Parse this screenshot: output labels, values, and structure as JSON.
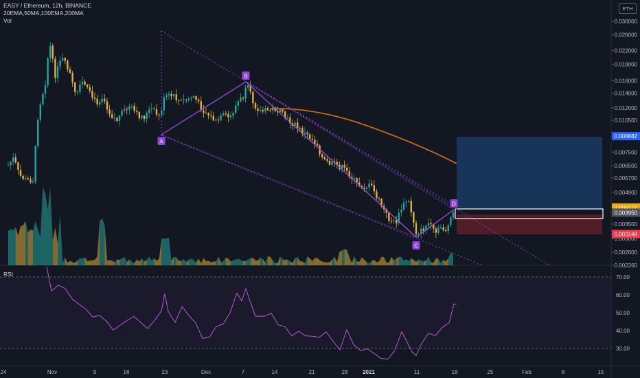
{
  "header": {
    "title": "EASY / Ethereum, 12h, BINANCE",
    "indicators": "20EMA,50MA,100EMA,200MA",
    "volume": "Vol",
    "currency": "ETH"
  },
  "rsi": {
    "label": "RSI"
  },
  "colors": {
    "background": "#131722",
    "up": "#26a69a",
    "down": "#e0b040",
    "pattern": "#8e44d6",
    "ma": "#c46a12",
    "rsi": "#b65bd1",
    "target_zone": "#1a3a63",
    "stop_zone": "#5a1f27"
  },
  "chart_data": [
    {
      "type": "candlestick",
      "price_axis": [
        "0.030000",
        "0.026000",
        "0.022000",
        "0.019000",
        "0.016000",
        "0.014000",
        "0.012000",
        "0.010500",
        "0.008882",
        "0.007500",
        "0.006500",
        "0.005700",
        "0.004900",
        "0.004171",
        "0.003950",
        "0.003500",
        "0.003148",
        "0.003000",
        "0.002600",
        "0.002260"
      ],
      "price_badges": [
        {
          "value": "0.008882",
          "color": "#2962ff"
        },
        {
          "value": "0.004171",
          "color": "#f0a50a"
        },
        {
          "value": "0.003950",
          "color": "#50535e"
        },
        {
          "value": "0.003148",
          "color": "#f23645"
        }
      ],
      "time_axis": [
        "24",
        "Nov",
        "9",
        "16",
        "23",
        "Dec",
        "7",
        "14",
        "21",
        "28",
        "2021",
        "11",
        "18",
        "25",
        "Feb",
        "8",
        "15"
      ],
      "harmonic_points": [
        {
          "label": "A",
          "date": "2020-11-23",
          "price": 0.0092
        },
        {
          "label": "B",
          "date": "2020-12-09",
          "price": 0.016
        },
        {
          "label": "C",
          "date": "2021-01-11",
          "price": 0.003
        },
        {
          "label": "D",
          "date": "2021-01-18",
          "price": 0.0041
        }
      ],
      "position": {
        "entry": 0.00395,
        "target": 0.008882,
        "stop": 0.003148
      }
    },
    {
      "type": "line",
      "name": "RSI",
      "y_axis": [
        "70.00",
        "60.00",
        "50.00",
        "40.00",
        "30.00"
      ],
      "levels": [
        70,
        30
      ]
    }
  ]
}
